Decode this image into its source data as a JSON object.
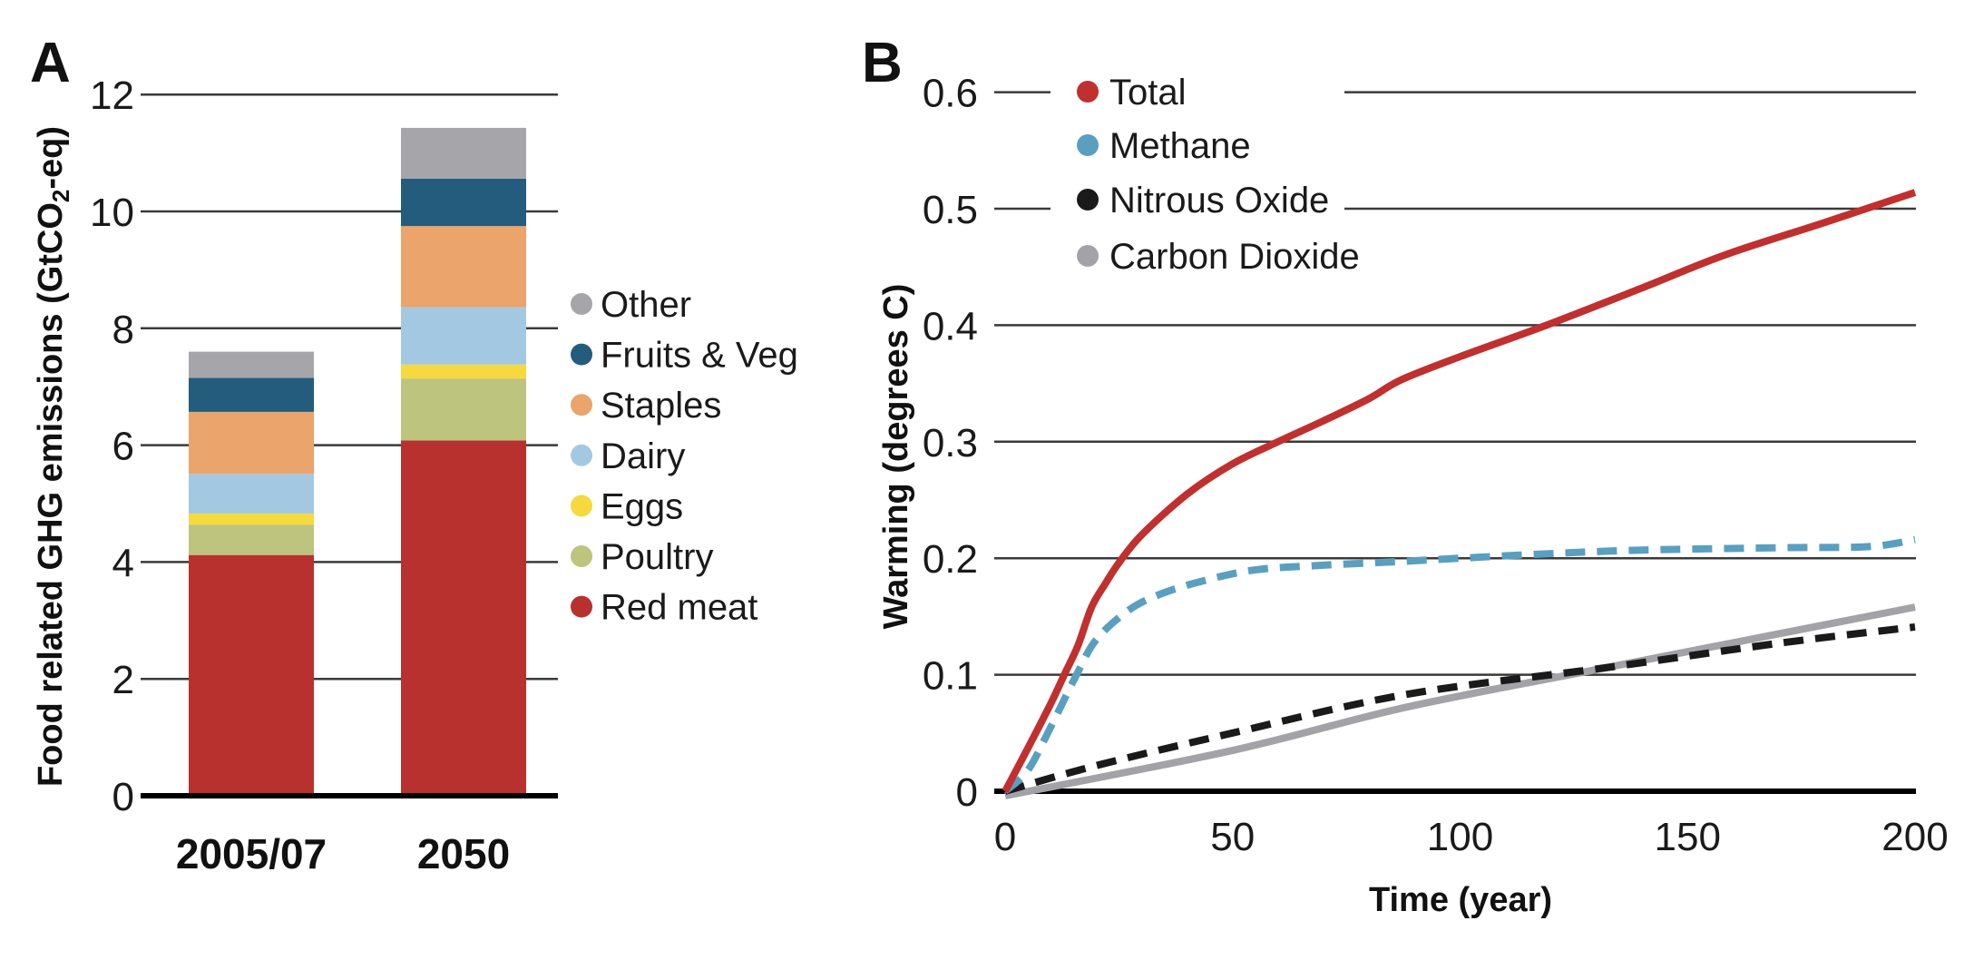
{
  "chart_data": [
    {
      "panel": "A",
      "type": "bar",
      "stacked": true,
      "categories": [
        "2005/07",
        "2050"
      ],
      "ylabel": "Food related GHG emissions (GtCO2-eq)",
      "ylabel_parts": {
        "pre": "Food related GHG emissions (GtCO",
        "sub": "2",
        "post": "-eq)"
      },
      "xlabel": "",
      "ylim": [
        0,
        12
      ],
      "yticks": [
        0,
        2,
        4,
        6,
        8,
        10,
        12
      ],
      "grid": true,
      "legend_position": "right",
      "series": [
        {
          "name": "Red meat",
          "color": "#b8312f",
          "values": [
            4.12,
            6.08
          ]
        },
        {
          "name": "Poultry",
          "color": "#bdc47e",
          "values": [
            0.52,
            1.06
          ]
        },
        {
          "name": "Eggs",
          "color": "#f5d93e",
          "values": [
            0.19,
            0.24
          ]
        },
        {
          "name": "Dairy",
          "color": "#a3c9e2",
          "values": [
            0.68,
            0.98
          ]
        },
        {
          "name": "Staples",
          "color": "#eba46b",
          "values": [
            1.06,
            1.39
          ]
        },
        {
          "name": "Fruits & Veg",
          "color": "#235c7c",
          "values": [
            0.58,
            0.81
          ]
        },
        {
          "name": "Other",
          "color": "#a6a6aa",
          "values": [
            0.45,
            0.87
          ]
        }
      ],
      "totals": [
        7.6,
        11.43
      ]
    },
    {
      "panel": "B",
      "type": "line",
      "xlabel": "Time (year)",
      "ylabel": "Warming (degrees C)",
      "xlim": [
        0,
        200
      ],
      "ylim": [
        0,
        0.6
      ],
      "xticks": [
        0,
        50,
        100,
        150,
        200
      ],
      "yticks": [
        0,
        0.1,
        0.2,
        0.3,
        0.4,
        0.5,
        0.6
      ],
      "ytick_labels": [
        "0",
        "0.1",
        "0.2",
        "0.3",
        "0.4",
        "0.5",
        "0.6"
      ],
      "grid": true,
      "legend_position": "top-left",
      "series": [
        {
          "name": "Total",
          "color": "#c0302e",
          "dash": "solid",
          "x": [
            0,
            5,
            10,
            13,
            16,
            19,
            22,
            25,
            30,
            40,
            50,
            60,
            70,
            80,
            87,
            100,
            119,
            140,
            158,
            180,
            200
          ],
          "y": [
            0,
            0.037,
            0.075,
            0.1,
            0.125,
            0.158,
            0.178,
            0.196,
            0.22,
            0.255,
            0.281,
            0.3,
            0.318,
            0.337,
            0.353,
            0.373,
            0.4,
            0.432,
            0.46,
            0.488,
            0.514
          ]
        },
        {
          "name": "Methane",
          "color": "#5a9fc0",
          "dash": "dashed",
          "x": [
            0,
            5,
            10,
            15.7,
            20,
            27,
            34,
            43,
            55,
            70,
            86,
            100,
            120,
            140,
            170,
            190,
            200
          ],
          "y": [
            0,
            0.018,
            0.055,
            0.1,
            0.13,
            0.155,
            0.169,
            0.18,
            0.19,
            0.194,
            0.197,
            0.2,
            0.204,
            0.207,
            0.209,
            0.21,
            0.216
          ]
        },
        {
          "name": "Nitrous Oxide",
          "color": "#1a1a1a",
          "dash": "dashed",
          "x": [
            0,
            20,
            50,
            88,
            132,
            170,
            200
          ],
          "y": [
            0,
            0.022,
            0.05,
            0.083,
            0.106,
            0.127,
            0.141
          ]
        },
        {
          "name": "Carbon Dioxide",
          "color": "#a3a3a7",
          "dash": "solid",
          "x": [
            0,
            50,
            88,
            132,
            200
          ],
          "y": [
            -0.004,
            0.035,
            0.072,
            0.106,
            0.158
          ]
        }
      ]
    }
  ]
}
